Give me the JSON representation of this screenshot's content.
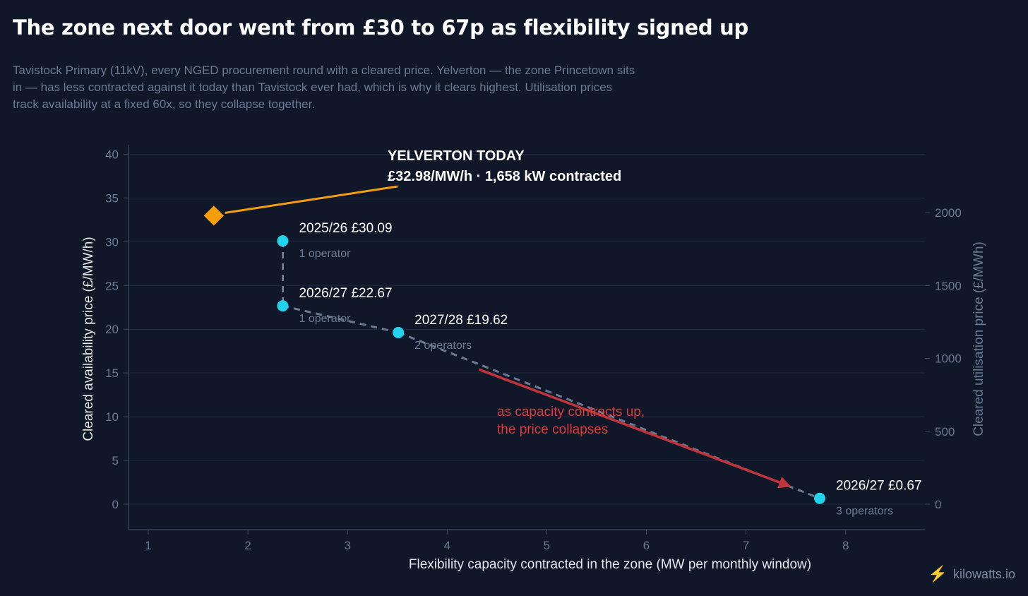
{
  "header": {
    "title": "The zone next door went from £30 to 67p as flexibility signed up",
    "subtitle": "Tavistock Primary (11kV), every NGED procurement round with a cleared price. Yelverton — the zone Princetown sits in — has less contracted against it today than Tavistock ever had, which is why it clears highest. Utilisation prices track availability at a fixed 60x, so they collapse together."
  },
  "chart_data": {
    "type": "scatter",
    "xlabel": "Flexibility capacity contracted in the zone (MW per monthly window)",
    "ylabel": "Cleared availability price (£/MW/h)",
    "y2label": "Cleared utilisation price (£/MWh)",
    "xlim": [
      0.8,
      8.8
    ],
    "ylim": [
      -3,
      41
    ],
    "y2lim": [
      -180,
      2460
    ],
    "x_ticks": [
      1,
      2,
      3,
      4,
      5,
      6,
      7,
      8
    ],
    "y_ticks": [
      0,
      5,
      10,
      15,
      20,
      25,
      30,
      35,
      40
    ],
    "y2_ticks": [
      0,
      500,
      1000,
      1500,
      2000
    ],
    "grid": true,
    "series": [
      {
        "name": "",
        "color": "#22d3ee",
        "points": [
          {
            "x": 2.35,
            "y": 30.09,
            "label": "2025/26",
            "price": "£30.09",
            "ops": "1 operator"
          },
          {
            "x": 2.35,
            "y": 22.67,
            "label": "2026/27",
            "price": "£22.67",
            "ops": "1 operator"
          },
          {
            "x": 3.51,
            "y": 19.62,
            "label": "2027/28",
            "price": "£19.62",
            "ops": "2 operators"
          },
          {
            "x": 7.74,
            "y": 0.67,
            "label": "2026/27",
            "price": "£0.67",
            "ops": "3 operators"
          }
        ]
      }
    ],
    "highlight": {
      "x": 1.658,
      "y": 32.98,
      "color": "#f59e0b",
      "title": "YELVERTON TODAY",
      "detail": "£32.98/MW/h  ·  1,658 kW contracted"
    },
    "trend_annotation": {
      "line1": "as capacity contracts up,",
      "line2": "the price collapses",
      "color": "#dc3b3b",
      "arrow_from": {
        "x": 4.32,
        "y": 15.4
      },
      "arrow_to": {
        "x": 7.43,
        "y": 2.1
      }
    }
  },
  "footer": {
    "brand": "kilowatts.io"
  }
}
